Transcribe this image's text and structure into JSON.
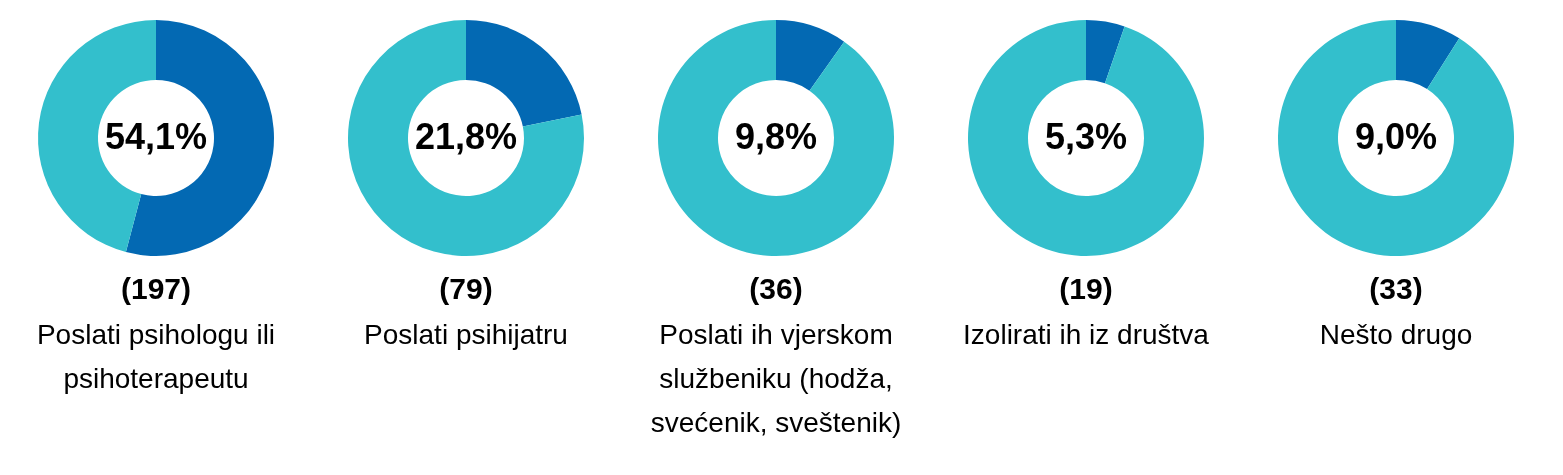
{
  "chart_data": [
    {
      "type": "donut",
      "xlabel": "Poslati psihologu ili psihoterapeutu",
      "categories": [
        null,
        null
      ],
      "values": [
        54.1,
        45.9
      ],
      "colors": [
        "#0369b3",
        "#33bfcc"
      ],
      "value_labels": [
        "54,1%",
        null
      ],
      "annotations": [
        "(197)"
      ]
    },
    {
      "type": "donut",
      "xlabel": "Poslati psihijatru",
      "categories": [
        null,
        null
      ],
      "values": [
        21.8,
        78.2
      ],
      "colors": [
        "#0369b3",
        "#33bfcc"
      ],
      "value_labels": [
        "21,8%",
        null
      ],
      "annotations": [
        "(79)"
      ]
    },
    {
      "type": "donut",
      "xlabel": "Poslati ih vjerskom službeniku (hodža, svećenik, sveštenik)",
      "categories": [
        null,
        null
      ],
      "values": [
        9.8,
        90.2
      ],
      "colors": [
        "#0369b3",
        "#33bfcc"
      ],
      "value_labels": [
        "9,8%",
        null
      ],
      "annotations": [
        "(36)"
      ]
    },
    {
      "type": "donut",
      "xlabel": "Izolirati ih iz društva",
      "categories": [
        null,
        null
      ],
      "values": [
        5.3,
        94.7
      ],
      "colors": [
        "#0369b3",
        "#33bfcc"
      ],
      "value_labels": [
        "5,3%",
        null
      ],
      "annotations": [
        "(19)"
      ]
    },
    {
      "type": "donut",
      "xlabel": "Nešto drugo",
      "categories": [
        null,
        null
      ],
      "values": [
        9.0,
        91.0
      ],
      "colors": [
        "#0369b3",
        "#33bfcc"
      ],
      "value_labels": [
        "9,0%",
        null
      ],
      "annotations": [
        "(33)"
      ]
    }
  ]
}
